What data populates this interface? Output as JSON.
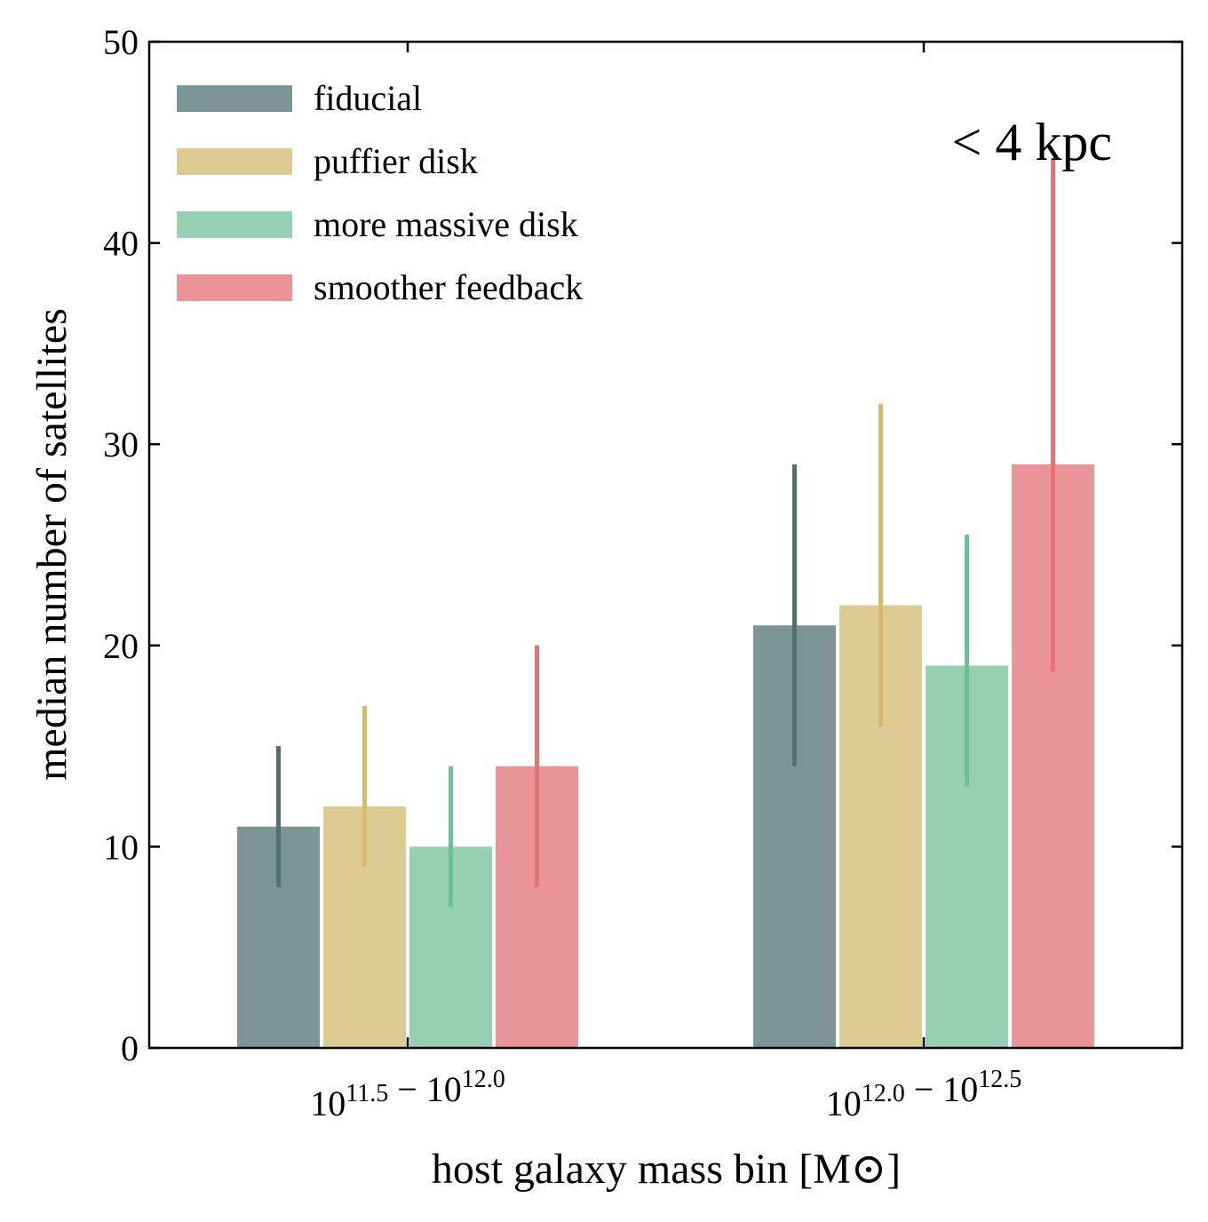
{
  "chart_data": {
    "type": "bar",
    "title": "",
    "annotation": "< 4 kpc",
    "xlabel": "host galaxy mass bin [M⊙]",
    "ylabel": "median number of satellites",
    "ylim": [
      0,
      50
    ],
    "yticks": [
      0,
      10,
      20,
      30,
      40,
      50
    ],
    "categories": [
      {
        "base1": "10",
        "exp1": "11.5",
        "sep": "−",
        "base2": "10",
        "exp2": "12.0"
      },
      {
        "base1": "10",
        "exp1": "12.0",
        "sep": "−",
        "base2": "10",
        "exp2": "12.5"
      }
    ],
    "legend_position": "top-left",
    "series": [
      {
        "name": "fiducial",
        "bar_color": "#7b9594",
        "err_color": "#4f706c",
        "values": [
          11,
          21
        ],
        "err_low": [
          8,
          14
        ],
        "err_high": [
          15,
          29
        ]
      },
      {
        "name": "puffier disk",
        "bar_color": "#decb92",
        "err_color": "#d4bb6b",
        "values": [
          12,
          22
        ],
        "err_low": [
          9,
          16
        ],
        "err_high": [
          17,
          32
        ]
      },
      {
        "name": "more massive disk",
        "bar_color": "#96cfb4",
        "err_color": "#6bc09b",
        "values": [
          10,
          19
        ],
        "err_low": [
          7,
          13
        ],
        "err_high": [
          14,
          25.5
        ]
      },
      {
        "name": "smoother feedback",
        "bar_color": "#e99597",
        "err_color": "#e47376",
        "values": [
          14,
          29
        ],
        "err_low": [
          8,
          18.7
        ],
        "err_high": [
          20,
          44.2
        ]
      }
    ]
  }
}
